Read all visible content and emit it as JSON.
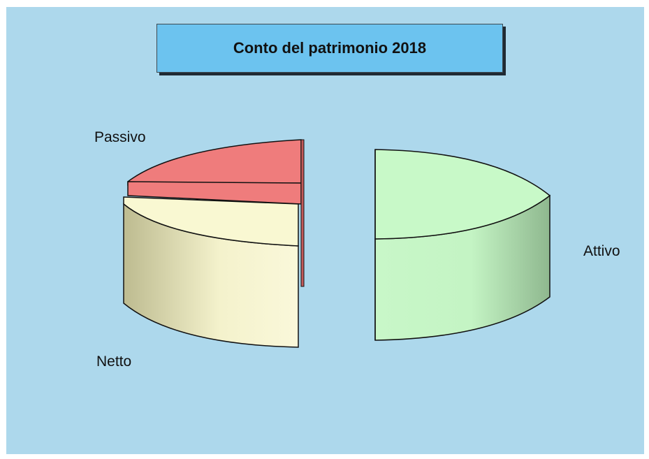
{
  "chart_data": {
    "type": "pie",
    "title": "Conto del patrimonio 2018",
    "style": "3d-exploded",
    "slices": [
      {
        "label": "Attivo",
        "value": 50,
        "color": "#c6f7c6"
      },
      {
        "label": "Netto",
        "value": 28,
        "color": "#f7f5c6"
      },
      {
        "label": "Passivo",
        "value": 22,
        "color": "#ef7c7c"
      }
    ]
  }
}
